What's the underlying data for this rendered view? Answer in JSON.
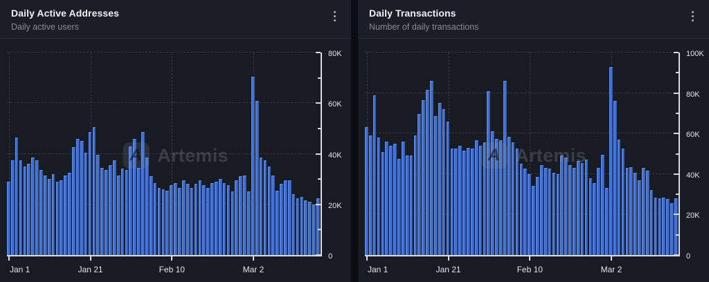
{
  "watermark": {
    "text": "Artemis",
    "logo_letter": "A"
  },
  "charts": [
    {
      "title": "Daily Active Addresses",
      "subtitle": "Daily active users",
      "menu_icon": "kebab-menu"
    },
    {
      "title": "Daily Transactions",
      "subtitle": "Number of daily transactions",
      "menu_icon": "kebab-menu"
    }
  ],
  "chart_data": [
    {
      "type": "bar",
      "title": "Daily Active Addresses",
      "subtitle": "Daily active users",
      "x_range": [
        "Jan 1",
        "Mar 18"
      ],
      "num_bars": 77,
      "x_tick_labels": [
        "Jan 1",
        "Jan 21",
        "Feb 10",
        "Mar 2"
      ],
      "x_tick_day_indices": [
        0,
        20,
        40,
        60
      ],
      "y_tick_labels": [
        "0",
        "20K",
        "40K",
        "60K",
        "80K"
      ],
      "ylim": [
        0,
        80000
      ],
      "grid": true,
      "legend": "none",
      "bar_color": "#3e6fd6",
      "bar_edge_color": "#6a92e4",
      "values": [
        29000,
        37500,
        46500,
        37500,
        35000,
        36000,
        38500,
        37500,
        33500,
        31500,
        30000,
        32000,
        29000,
        29500,
        31500,
        32500,
        42500,
        46000,
        45000,
        40500,
        48500,
        50500,
        39500,
        34500,
        33500,
        35500,
        37500,
        31500,
        34000,
        33500,
        43000,
        46000,
        34500,
        48500,
        38500,
        31000,
        28500,
        26500,
        26000,
        25500,
        27500,
        28500,
        26500,
        29500,
        28000,
        26500,
        28000,
        29500,
        27500,
        26500,
        28500,
        29000,
        30000,
        28500,
        27500,
        25000,
        29500,
        31000,
        31500,
        25000,
        70500,
        61000,
        38500,
        37500,
        35000,
        31500,
        25500,
        28000,
        29500,
        29500,
        24000,
        22500,
        23000,
        21500,
        21000,
        20000,
        22500
      ]
    },
    {
      "type": "bar",
      "title": "Daily Transactions",
      "subtitle": "Number of daily transactions",
      "x_range": [
        "Jan 1",
        "Mar 18"
      ],
      "num_bars": 77,
      "x_tick_labels": [
        "Jan 1",
        "Jan 21",
        "Feb 10",
        "Mar 2"
      ],
      "x_tick_day_indices": [
        0,
        20,
        40,
        60
      ],
      "y_tick_labels": [
        "0",
        "20K",
        "40K",
        "60K",
        "80K",
        "100K"
      ],
      "ylim": [
        0,
        100000
      ],
      "grid": true,
      "legend": "none",
      "bar_color": "#3e6fd6",
      "bar_edge_color": "#6a92e4",
      "values": [
        63000,
        59000,
        79000,
        58000,
        51000,
        56000,
        54000,
        55000,
        47500,
        56000,
        49000,
        49000,
        59000,
        69500,
        76500,
        81500,
        86000,
        68500,
        75000,
        72000,
        66000,
        52500,
        52500,
        54000,
        51500,
        53000,
        52500,
        56500,
        54000,
        55500,
        81000,
        61000,
        57500,
        56500,
        86000,
        58500,
        55500,
        52500,
        45000,
        42500,
        40000,
        34000,
        38500,
        44500,
        43000,
        42500,
        40500,
        40000,
        49000,
        48000,
        44500,
        43000,
        46500,
        45500,
        47000,
        38000,
        35500,
        43000,
        49500,
        33000,
        93000,
        76000,
        57000,
        52500,
        43000,
        43500,
        40500,
        37000,
        43000,
        41500,
        32000,
        28500,
        28000,
        28500,
        27500,
        25500,
        28000
      ]
    }
  ],
  "colors": {
    "page_background": "#0b0d12",
    "card_background": "#181b22",
    "header_background": "#1b1e26",
    "axis": "#d9dce2",
    "gridline": "#363b46",
    "bar": "#3e6fd6",
    "title_text": "#eef0f3",
    "subtitle_text": "#858b96"
  }
}
